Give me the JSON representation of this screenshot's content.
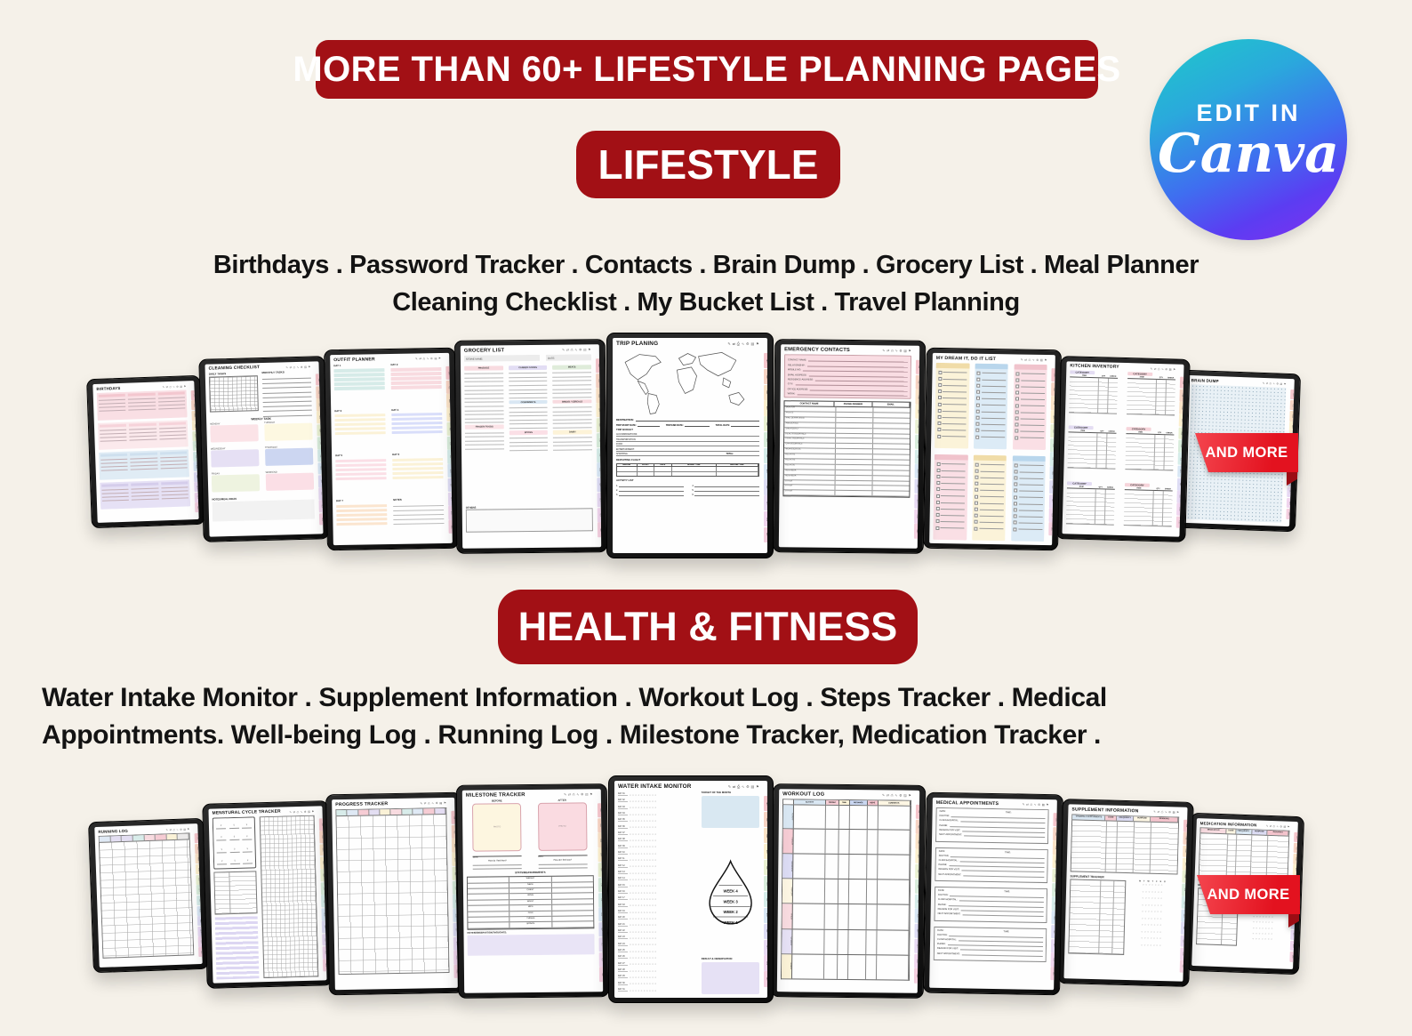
{
  "background": "#f5f1e9",
  "accent_red": "#a21015",
  "ribbon_red": "#e3121f",
  "header": {
    "banner": "MORE THAN 60+ LIFESTYLE PLANNING PAGES"
  },
  "canva_badge": {
    "line1": "EDIT IN",
    "line2": "Canva"
  },
  "months": [
    "JAN",
    "FEB",
    "MAR",
    "APR",
    "MAY",
    "JUN",
    "JUL",
    "AUG",
    "SEP",
    "OCT",
    "NOV",
    "DEC"
  ],
  "toolbar_icons": "✎ ⇄ ⎙ ∿ ⚙ ▤ ⚑",
  "sections": [
    {
      "id": "lifestyle",
      "banner": "LIFESTYLE",
      "list_lines": [
        "Birthdays . Password  Tracker . Contacts . Brain Dump . Grocery List . Meal Planner",
        "Cleaning Checklist . My Bucket List . Travel Planning"
      ],
      "and_more": "AND MORE",
      "tablets": [
        {
          "title": "BIRTHDAYS",
          "kind": "birthdays"
        },
        {
          "title": "CLEANING CHECKLIST",
          "kind": "cleaning",
          "labels": {
            "daily": "DAILY TASKS",
            "monthly": "MONTHLY TASKS",
            "weekly": "WEEKLY TASK",
            "days": [
              "MONDAY",
              "TUESDAY",
              "WEDNESDAY",
              "THURSDAY",
              "FRIDAY",
              "WEEKEND"
            ],
            "notes": "NOTES/MEAL IDEAS"
          }
        },
        {
          "title": "OUTFIT PLANNER",
          "kind": "outfit",
          "labels": {
            "days": [
              "DAY 1",
              "DAY 2",
              "DAY 3",
              "DAY 4",
              "DAY 5",
              "DAY 6",
              "DAY 7",
              "NOTES"
            ],
            "fields": [
              "TOP",
              "BOTTOM",
              "SHOES",
              "ACCESSORIES",
              "EXTRAS"
            ]
          }
        },
        {
          "title": "GROCERY LIST",
          "kind": "grocery",
          "labels": {
            "store": "STORE NAME:",
            "date": "DATE:",
            "categories": [
              "PRODUCE",
              "CANNED GOODS",
              "MEATS",
              "CONDIMENTS",
              "BREAD / CEREALS",
              "FROZEN FOODS",
              "SPICES",
              "DAIRY"
            ],
            "others": "OTHERS"
          }
        },
        {
          "title": "TRIP PLANING",
          "kind": "trip",
          "labels": {
            "destination": "DESTINATION:",
            "start": "TRIP START DATE:",
            "end": "TRIP END DATE:",
            "total": "TOTAL DAYS:",
            "budget": "TRIP BUDGET",
            "budget_rows": [
              "ACCOMMODATIONS:",
              "TRANSPORTATION:",
              "FOOD:",
              "ENTERTAINMENT:",
              "SHOPPING:"
            ],
            "total2": "TOTAL:",
            "flight": "DEPARTING FLIGHT",
            "flight_cols": [
              "AIRLINE",
              "FLIGHT",
              "DATE",
              "DEPART TIME",
              "ARRIVAL TIME"
            ],
            "activity": "ACTIVITY LIST"
          }
        },
        {
          "title": "EMERGENCY CONTACTS",
          "kind": "contacts",
          "labels": {
            "info": [
              "CONTACT NAME:",
              "RELATIONSHIP:",
              "MOBILE NO:",
              "EMAIL ADDRESS:",
              "RESIDENCE ADDRESS:",
              "CITY:",
              "OFFICE ADDRESS:",
              "WORK:"
            ],
            "cols": [
              "CONTACT NAME",
              "PHONE NUMBER",
              "EMAIL"
            ],
            "rows": [
              "DOCTOR",
              "POLICE",
              "FIRE DEPARTMENT",
              "AMBULANCE",
              "EMERGENCY",
              "HEALTH INSURANCE",
              "HOME INSURANCE",
              "CAR INSURANCE",
              "WORK/SCHOOL",
              "RELATIVE",
              "RELATIVE",
              "RELATIVE",
              "NEIGHBOR",
              "NEIGHBOR",
              "OTHER",
              "OTHER",
              "OTHER"
            ]
          }
        },
        {
          "title": "MY DREAM IT, DO IT LIST",
          "kind": "dream"
        },
        {
          "title": "KITCHEN INVENTORY",
          "kind": "kitchen",
          "labels": {
            "category": "CATEGORY",
            "cols": [
              "ITEM",
              "QTY",
              "CHECK"
            ]
          }
        },
        {
          "title": "BRAIN DUMP",
          "kind": "braindump"
        }
      ]
    },
    {
      "id": "health",
      "banner": "HEALTH & FITNESS",
      "list_lines": [
        "Water Intake Monitor . Supplement Information . Workout Log . Steps Tracker . Medical",
        "Appointments. Well-being Log . Running Log . Milestone Tracker, Medication Tracker ."
      ],
      "and_more": "AND MORE",
      "tablets": [
        {
          "title": "RUNNING LOG",
          "kind": "running"
        },
        {
          "title": "MENSTURAL CYCLE TRACKER",
          "kind": "cycle"
        },
        {
          "title": "PROGRESS TRACKER",
          "kind": "progress"
        },
        {
          "title": "MILESTONE TRACKER",
          "kind": "milestone",
          "labels": {
            "before": "BEFORE",
            "after": "AFTER",
            "date": "DATE:",
            "q1": "How do I feel then?",
            "q2": "How do I feel now?",
            "stats": "STATS/MEASUREMENTS",
            "stat_rows": [
              "WEIGHT",
              "NECK",
              "CHEST",
              "ARMS",
              "WAIST",
              "HIPS",
              "CALF",
              "THIGHS",
              "BICEPS"
            ],
            "notes": "NOTES/OBSERVATION/THOUGHTS:",
            "photo": "PHOTO"
          }
        },
        {
          "title": "WATER INTAKE MONITOR",
          "kind": "water",
          "labels": {
            "target": "TARGET OF THE MONTH",
            "weeks": [
              "WEEK 4",
              "WEEK 3",
              "WEEK 2",
              "WEEK 1"
            ],
            "result": "RESULT & OBSERVATION",
            "day": "DAY"
          }
        },
        {
          "title": "WORKOUT LOG",
          "kind": "workout",
          "labels": {
            "cols": [
              "ACTIVITY",
              "WEIGHT",
              "TIME",
              "DISTANCE",
              "REPS",
              "COMMENTS"
            ],
            "days": [
              "MONDAY",
              "TUESDAY",
              "WEDNESDAY",
              "THURSDAY",
              "FRIDAY",
              "SATURDAY",
              "SUNDAY"
            ]
          }
        },
        {
          "title": "MEDICAL APPOINTMENTS",
          "kind": "appointments",
          "labels": {
            "date": "DATE:",
            "time": "TIME:",
            "rows": [
              "DOCTOR:",
              "CLINIC/HOSPITAL:",
              "PHONE:",
              "REASON FOR VISIT:",
              "NEXT APPOINTMENT:"
            ]
          }
        },
        {
          "title": "SUPPLEMENT INFORMATION",
          "kind": "supplement",
          "labels": {
            "cols": [
              "VITAMINS & SUPPLEMENTS",
              "DOSE",
              "FREQUENCY",
              "PURPOSE",
              "REMARKS"
            ],
            "tracker": "SUPPLEMENT TRACKER",
            "week": [
              "M",
              "T",
              "W",
              "T",
              "F",
              "S",
              "S"
            ]
          }
        },
        {
          "title": "MEDICATION INFORMATION",
          "kind": "medication",
          "labels": {
            "cols": [
              "MEDICATION",
              "DOSE",
              "FREQUENCY",
              "PURPOSE",
              "REMARKS"
            ],
            "tracker": "MEDICATION TRACKER",
            "week": [
              "M",
              "T",
              "W",
              "T",
              "F",
              "S",
              "S"
            ]
          }
        }
      ]
    }
  ]
}
